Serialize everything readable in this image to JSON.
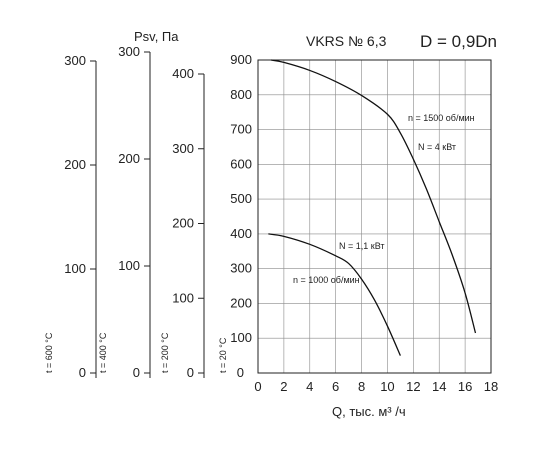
{
  "chart_data": {
    "type": "line",
    "title": "VKRS № 6,3",
    "subtitle": "D = 0,9Dn",
    "xlabel": "Q, тыс. м³ /ч",
    "ylabel": "Psv, Па",
    "xlim": [
      0,
      18
    ],
    "ylim": [
      0,
      900
    ],
    "x_ticks": [
      "0",
      "2",
      "4",
      "6",
      "8",
      "10",
      "12",
      "14",
      "16",
      "18"
    ],
    "y_ticks": [
      "0",
      "100",
      "200",
      "300",
      "400",
      "500",
      "600",
      "700",
      "800",
      "900"
    ],
    "grid": true,
    "series": [
      {
        "name": "n = 1500 об/мин",
        "power_label": "N = 4 кВт",
        "x": [
          1.0,
          2.0,
          4.0,
          6.0,
          8.0,
          10.0,
          11.0,
          12.0,
          13.0,
          14.0,
          15.0,
          16.0,
          16.8
        ],
        "y": [
          900,
          893,
          870,
          838,
          798,
          744,
          690,
          615,
          530,
          435,
          340,
          230,
          115
        ]
      },
      {
        "name": "n = 1000 об/мин",
        "power_label": "N = 1,1 кВт",
        "x": [
          0.8,
          2.0,
          4.0,
          6.0,
          7.0,
          8.0,
          9.0,
          10.0,
          11.0
        ],
        "y": [
          400,
          393,
          370,
          337,
          315,
          270,
          210,
          135,
          50
        ]
      }
    ],
    "secondary_axes": [
      {
        "label": "t = 20 °C",
        "ticks": [
          "0",
          "100",
          "200",
          "300",
          "400",
          "500"
        ],
        "range": [
          0,
          560
        ]
      },
      {
        "label": "t = 200 °C",
        "ticks": [
          "0",
          "100",
          "200",
          "300",
          "400"
        ],
        "range": [
          0,
          400
        ]
      },
      {
        "label": "t = 400 °C",
        "ticks": [
          "0",
          "100",
          "200",
          "300"
        ],
        "range": [
          0,
          300
        ]
      },
      {
        "label": "t = 600 °C",
        "ticks": [
          "0",
          "100",
          "200",
          "300"
        ],
        "range": [
          0,
          300
        ]
      }
    ]
  }
}
